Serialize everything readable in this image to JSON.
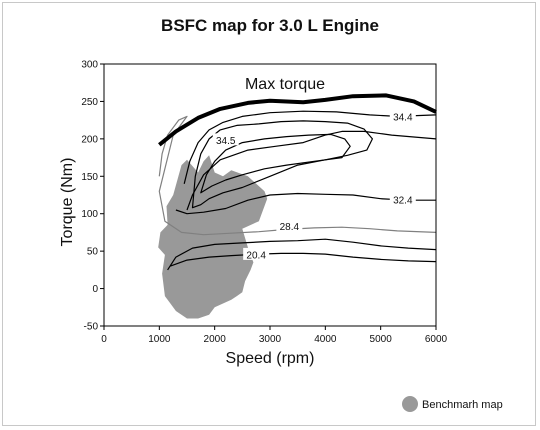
{
  "chart_data": {
    "type": "contour",
    "title": "BSFC map for 3.0 L Engine",
    "xlabel": "Speed (rpm)",
    "ylabel": "Torque (Nm)",
    "xlim": [
      0,
      6000
    ],
    "ylim": [
      -50,
      300
    ],
    "xticks": [
      0,
      1000,
      2000,
      3000,
      4000,
      5000,
      6000
    ],
    "yticks": [
      -50,
      0,
      50,
      100,
      150,
      200,
      250,
      300
    ],
    "grid": false,
    "max_torque": {
      "label": "Max torque",
      "points": [
        [
          1000,
          192
        ],
        [
          1300,
          210
        ],
        [
          1700,
          228
        ],
        [
          2100,
          240
        ],
        [
          2600,
          248
        ],
        [
          3000,
          251
        ],
        [
          3600,
          249
        ],
        [
          4000,
          252
        ],
        [
          4500,
          257
        ],
        [
          5100,
          258
        ],
        [
          5600,
          250
        ],
        [
          6000,
          236
        ]
      ]
    },
    "contours": [
      {
        "label": "34.4",
        "color": "#000000",
        "closed": false,
        "points": [
          [
            1450,
            140
          ],
          [
            1550,
            170
          ],
          [
            1700,
            195
          ],
          [
            1900,
            212
          ],
          [
            2150,
            222
          ],
          [
            2500,
            230
          ],
          [
            3000,
            235
          ],
          [
            3600,
            237
          ],
          [
            4200,
            236
          ],
          [
            4800,
            232
          ],
          [
            5300,
            230
          ],
          [
            6000,
            232
          ]
        ]
      },
      {
        "label": "34.5",
        "color": "#000000",
        "closed": true,
        "points": [
          [
            1600,
            108
          ],
          [
            1650,
            150
          ],
          [
            1750,
            180
          ],
          [
            1900,
            200
          ],
          [
            2100,
            212
          ],
          [
            2400,
            218
          ],
          [
            2800,
            220
          ],
          [
            3200,
            223
          ],
          [
            3600,
            224
          ],
          [
            4000,
            223
          ],
          [
            4400,
            221
          ],
          [
            4700,
            213
          ],
          [
            4850,
            200
          ],
          [
            4750,
            185
          ],
          [
            4400,
            178
          ],
          [
            4000,
            172
          ],
          [
            3500,
            165
          ],
          [
            3000,
            150
          ],
          [
            2500,
            135
          ],
          [
            2150,
            128
          ],
          [
            1900,
            120
          ],
          [
            1750,
            112
          ]
        ]
      },
      {
        "label": "",
        "color": "#000000",
        "closed": true,
        "points": [
          [
            1750,
            128
          ],
          [
            1850,
            152
          ],
          [
            2000,
            170
          ],
          [
            2200,
            185
          ],
          [
            2500,
            195
          ],
          [
            2900,
            200
          ],
          [
            3300,
            203
          ],
          [
            3700,
            205
          ],
          [
            4100,
            206
          ],
          [
            4350,
            200
          ],
          [
            4450,
            190
          ],
          [
            4300,
            175
          ],
          [
            3800,
            170
          ],
          [
            3300,
            165
          ],
          [
            2900,
            160
          ],
          [
            2500,
            152
          ],
          [
            2200,
            145
          ],
          [
            1950,
            137
          ]
        ]
      },
      {
        "label": "32.4",
        "color": "#000000",
        "closed": false,
        "points": [
          [
            1500,
            105
          ],
          [
            1600,
            125
          ],
          [
            1800,
            152
          ],
          [
            2100,
            172
          ],
          [
            2600,
            185
          ],
          [
            3100,
            190
          ],
          [
            3600,
            195
          ],
          [
            4000,
            205
          ],
          [
            4300,
            210
          ],
          [
            4700,
            210
          ],
          [
            5200,
            205
          ],
          [
            6000,
            200
          ]
        ]
      },
      {
        "label": "32.4",
        "color": "#000000",
        "closed": false,
        "points": [
          [
            1300,
            105
          ],
          [
            1500,
            100
          ],
          [
            1800,
            102
          ],
          [
            2200,
            107
          ],
          [
            2600,
            118
          ],
          [
            3000,
            125
          ],
          [
            3500,
            127
          ],
          [
            4000,
            126
          ],
          [
            4500,
            125
          ],
          [
            5000,
            120
          ],
          [
            5500,
            118
          ],
          [
            6000,
            118
          ]
        ]
      },
      {
        "label": "28.4",
        "color": "#808080",
        "closed": false,
        "points": [
          [
            1000,
            150
          ],
          [
            1050,
            180
          ],
          [
            1150,
            205
          ],
          [
            1350,
            225
          ],
          [
            1500,
            230
          ],
          [
            1250,
            205
          ],
          [
            1000,
            130
          ],
          [
            1100,
            90
          ],
          [
            1400,
            75
          ],
          [
            1800,
            72
          ],
          [
            2300,
            74
          ],
          [
            2800,
            76
          ],
          [
            3300,
            79
          ],
          [
            3800,
            81
          ],
          [
            4300,
            82
          ],
          [
            4800,
            80
          ],
          [
            5300,
            77
          ],
          [
            6000,
            75
          ]
        ]
      },
      {
        "label": "20.4",
        "color": "#000000",
        "closed": false,
        "points": [
          [
            1150,
            25
          ],
          [
            1300,
            42
          ],
          [
            1600,
            54
          ],
          [
            2000,
            59
          ],
          [
            2500,
            61
          ],
          [
            3000,
            63
          ],
          [
            3500,
            64
          ],
          [
            4000,
            66
          ],
          [
            4500,
            62
          ],
          [
            5000,
            57
          ],
          [
            5500,
            54
          ],
          [
            6000,
            52
          ]
        ]
      },
      {
        "label": "20.4",
        "color": "#000000",
        "closed": false,
        "points": [
          [
            1200,
            30
          ],
          [
            1500,
            38
          ],
          [
            1900,
            42
          ],
          [
            2300,
            44
          ],
          [
            2800,
            46
          ],
          [
            3200,
            47
          ],
          [
            3600,
            47
          ],
          [
            4000,
            46
          ],
          [
            4500,
            42
          ],
          [
            5000,
            39
          ],
          [
            5500,
            37
          ],
          [
            6000,
            36
          ]
        ]
      }
    ],
    "contour_labels": [
      {
        "text": "34.5",
        "x": 2200,
        "y": 198
      },
      {
        "text": "34.4",
        "x": 5400,
        "y": 229
      },
      {
        "text": "32.4",
        "x": 5400,
        "y": 118
      },
      {
        "text": "28.4",
        "x": 3350,
        "y": 83
      },
      {
        "text": "20.4",
        "x": 2750,
        "y": 45
      }
    ],
    "benchmark_region": {
      "label": "Benchmarh map",
      "color": "#999999",
      "points": [
        [
          1100,
          -10
        ],
        [
          1050,
          20
        ],
        [
          1100,
          45
        ],
        [
          980,
          55
        ],
        [
          1020,
          75
        ],
        [
          1150,
          85
        ],
        [
          1130,
          110
        ],
        [
          1250,
          125
        ],
        [
          1400,
          165
        ],
        [
          1500,
          172
        ],
        [
          1700,
          155
        ],
        [
          1800,
          170
        ],
        [
          1900,
          178
        ],
        [
          2000,
          155
        ],
        [
          2150,
          150
        ],
        [
          2300,
          158
        ],
        [
          2600,
          150
        ],
        [
          2900,
          130
        ],
        [
          2950,
          120
        ],
        [
          2800,
          90
        ],
        [
          2500,
          80
        ],
        [
          2600,
          55
        ],
        [
          2700,
          35
        ],
        [
          2650,
          25
        ],
        [
          2550,
          10
        ],
        [
          2500,
          -5
        ],
        [
          2400,
          -10
        ],
        [
          2300,
          -15
        ],
        [
          2150,
          -20
        ],
        [
          2000,
          -25
        ],
        [
          1900,
          -35
        ],
        [
          1700,
          -40
        ],
        [
          1500,
          -40
        ],
        [
          1300,
          -30
        ],
        [
          1200,
          -20
        ]
      ]
    }
  }
}
